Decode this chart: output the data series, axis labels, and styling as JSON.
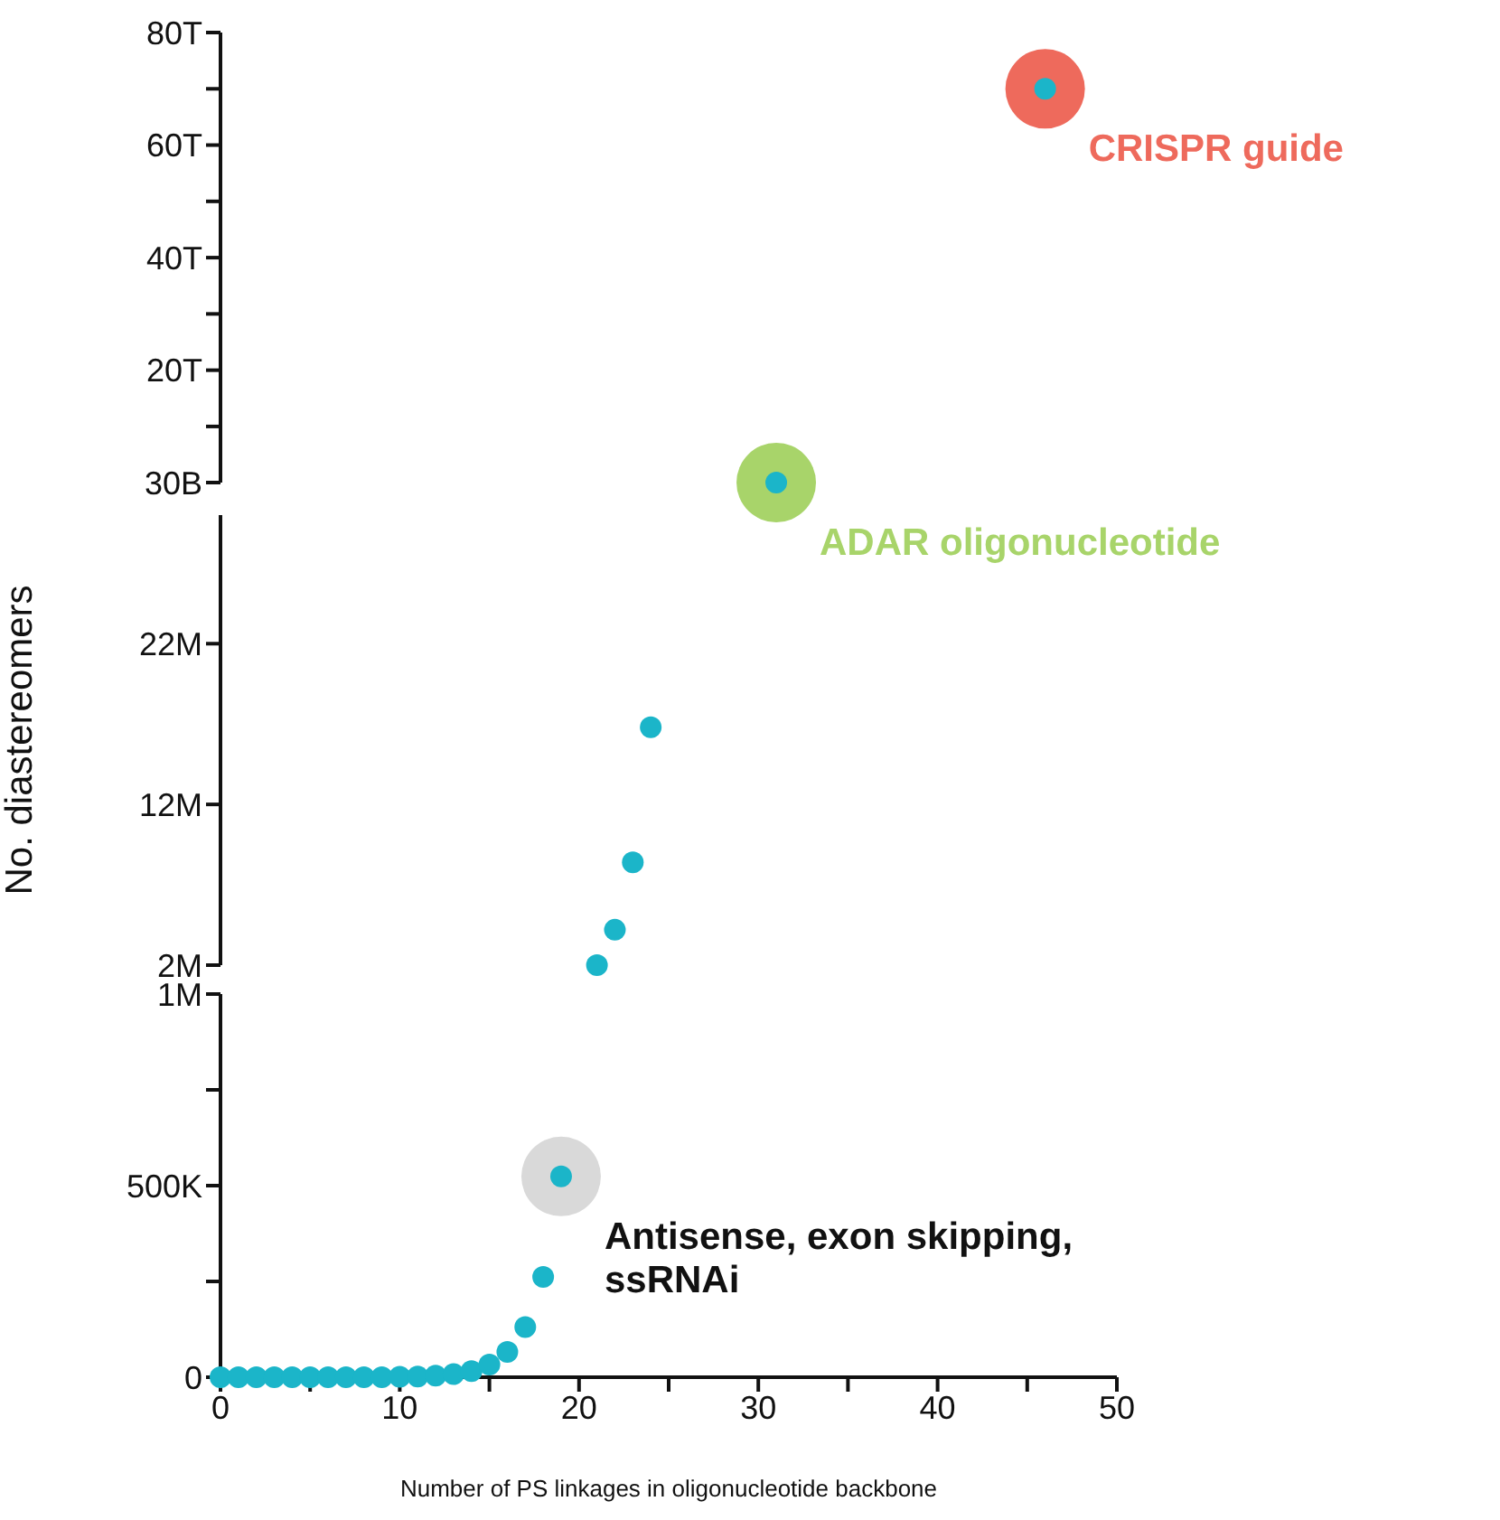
{
  "chart_data": [
    {
      "type": "scatter",
      "marker": "circle",
      "tick_labels": "y",
      "xlim": [
        0,
        50
      ],
      "ylim": [
        30000000000,
        80000000000000
      ],
      "yticks": [
        {
          "value": 30000000000,
          "label": "30B"
        },
        {
          "value": 10000000000000,
          "label": null
        },
        {
          "value": 20000000000000,
          "label": "20T"
        },
        {
          "value": 30000000000000,
          "label": null
        },
        {
          "value": 40000000000000,
          "label": "40T"
        },
        {
          "value": 50000000000000,
          "label": null
        },
        {
          "value": 60000000000000,
          "label": "60T"
        },
        {
          "value": 70000000000000,
          "label": null
        },
        {
          "value": 80000000000000,
          "label": "80T"
        }
      ],
      "series": [
        {
          "name": "CRISPR guide",
          "color": "#ee6a5c",
          "x": [
            46
          ],
          "values": [
            70000000000000
          ]
        },
        {
          "name": "ADAR oligonucleotide",
          "color": "#a8d46a",
          "x": [
            31
          ],
          "values": [
            30000000000
          ]
        },
        {
          "color": "#1bb5c9",
          "x": [
            31,
            46
          ],
          "values": [
            30000000000,
            70000000000000
          ]
        }
      ]
    },
    {
      "type": "scatter",
      "marker": "circle",
      "tick_labels": "y",
      "ylabel": "No. diastereomers",
      "xlim": [
        0,
        50
      ],
      "ylim": [
        2000000,
        30000000
      ],
      "yticks": [
        {
          "value": 2000000,
          "label": "2M"
        },
        {
          "value": 12000000,
          "label": "12M"
        },
        {
          "value": 22000000,
          "label": "22M"
        }
      ],
      "series": [
        {
          "color": "#1bb5c9",
          "x": [
            21,
            22,
            23,
            24
          ],
          "values": [
            2000000,
            4200000,
            8400000,
            16800000
          ]
        }
      ]
    },
    {
      "type": "scatter",
      "marker": "circle",
      "xlabel": "Number of PS linkages in oligonucleotide backbone",
      "xlim": [
        0,
        50
      ],
      "xticks": [
        0,
        {
          "value": 5,
          "label": null
        },
        10,
        {
          "value": 15,
          "label": null
        },
        20,
        {
          "value": 25,
          "label": null
        },
        30,
        {
          "value": 35,
          "label": null
        },
        40,
        {
          "value": 45,
          "label": null
        },
        50
      ],
      "ylim": [
        0,
        1000000
      ],
      "yticks": [
        {
          "value": 0,
          "label": "0"
        },
        {
          "value": 250000,
          "label": null
        },
        {
          "value": 500000,
          "label": "500K"
        },
        {
          "value": 750000,
          "label": null
        },
        {
          "value": 1000000,
          "label": "1M"
        }
      ],
      "series": [
        {
          "name": "Antisense, exon skipping, ssRNAi",
          "color": "#d9d9d9",
          "x": [
            19
          ],
          "values": [
            524000
          ]
        },
        {
          "color": "#1bb5c9",
          "x": [
            0,
            1,
            2,
            3,
            4,
            5,
            6,
            7,
            8,
            9,
            10,
            11,
            12,
            13,
            14,
            15,
            16,
            17,
            18,
            19
          ],
          "values": [
            0,
            0,
            0,
            0,
            0,
            0,
            0,
            0,
            0,
            0,
            1000,
            2000,
            4000,
            8000,
            16000,
            33000,
            66000,
            131000,
            262000,
            524000
          ]
        }
      ]
    }
  ]
}
